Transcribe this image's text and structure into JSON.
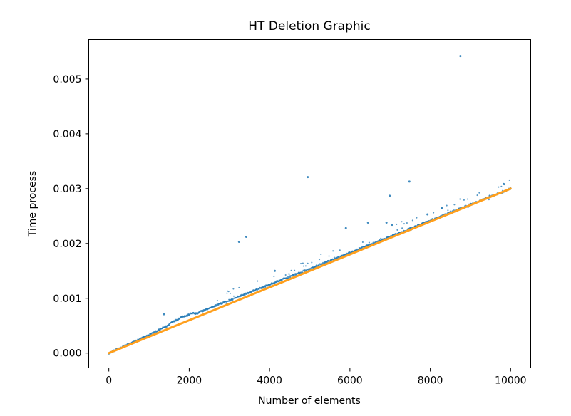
{
  "chart_data": {
    "type": "scatter",
    "title": "HT Deletion Graphic",
    "xlabel": "Number of elements",
    "ylabel": "Time process",
    "xlim": [
      -500,
      10500
    ],
    "ylim": [
      -0.00027,
      0.00572
    ],
    "x_ticks": [
      0,
      2000,
      4000,
      6000,
      8000,
      10000
    ],
    "x_tick_labels": [
      "0",
      "2000",
      "4000",
      "6000",
      "8000",
      "10000"
    ],
    "y_ticks": [
      0,
      0.001,
      0.002,
      0.003,
      0.004,
      0.005
    ],
    "y_tick_labels": [
      "0.000",
      "0.001",
      "0.002",
      "0.003",
      "0.004",
      "0.005"
    ],
    "grid": false,
    "colors": {
      "measured": "#1f77b4",
      "fitted": "#ff9f1c"
    },
    "series": [
      {
        "color": "#1f77b4",
        "style": "scatter",
        "trend": [
          [
            0,
            0.0
          ],
          [
            1000,
            0.00033
          ],
          [
            1400,
            0.00048
          ],
          [
            1700,
            0.00062
          ],
          [
            2000,
            0.00071
          ],
          [
            2200,
            0.00073
          ],
          [
            2600,
            0.00085
          ],
          [
            4000,
            0.00125
          ],
          [
            6000,
            0.00183
          ],
          [
            8000,
            0.00242
          ],
          [
            10000,
            0.003
          ]
        ],
        "outliers": [
          [
            8750,
            0.00542
          ],
          [
            4950,
            0.00321
          ],
          [
            7480,
            0.00313
          ],
          [
            6990,
            0.00287
          ],
          [
            3240,
            0.00203
          ],
          [
            3420,
            0.00212
          ],
          [
            5900,
            0.00228
          ],
          [
            6450,
            0.00238
          ],
          [
            6910,
            0.00238
          ],
          [
            7050,
            0.00234
          ],
          [
            4130,
            0.0015
          ],
          [
            1370,
            0.00071
          ],
          [
            9480,
            0.00287
          ],
          [
            9840,
            0.00308
          ],
          [
            7930,
            0.00253
          ],
          [
            8300,
            0.00264
          ]
        ]
      },
      {
        "color": "#ff9f1c",
        "style": "line",
        "points": [
          [
            0,
            0.0
          ],
          [
            10000,
            0.003
          ]
        ]
      }
    ]
  }
}
